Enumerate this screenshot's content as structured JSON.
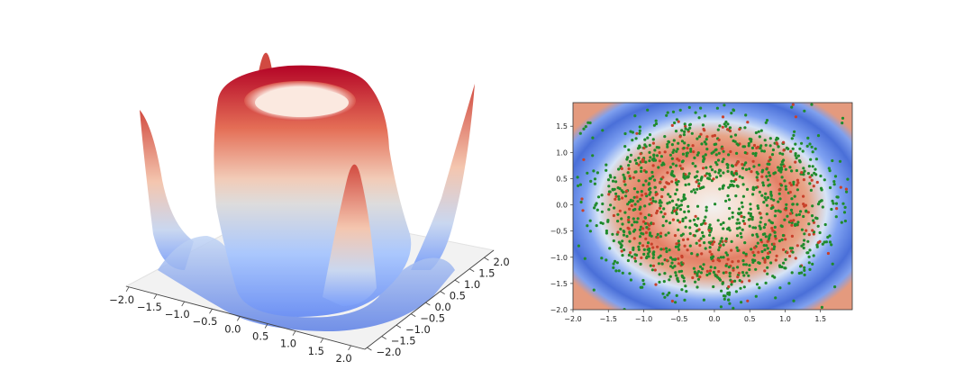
{
  "chart_data": [
    {
      "type": "surface3d",
      "colormap": "coolwarm",
      "x_ticks": [
        "−2.0",
        "−1.5",
        "−1.0",
        "−0.5",
        "0.0",
        "0.5",
        "1.0",
        "1.5",
        "2.0"
      ],
      "y_ticks": [
        "−2.0",
        "−1.5",
        "−1.0",
        "−0.5",
        "0.0",
        "0.5",
        "1.0",
        "1.5",
        "2.0"
      ],
      "xlim": [
        -2,
        2
      ],
      "ylim": [
        -2,
        2
      ],
      "surface": "radial ring peaking near r = 1.1, with tall spikes at the four corners",
      "grid": false
    },
    {
      "type": "heatmap",
      "overlay": "scatter",
      "colormap": "coolwarm background with green and red scatter points",
      "x_ticks": [
        "−2.0",
        "−1.5",
        "−1.0",
        "−0.5",
        "0.0",
        "0.5",
        "1.0",
        "1.5"
      ],
      "y_ticks": [
        "1.5",
        "1.0",
        "0.5",
        "0.0",
        "−0.5",
        "−1.0",
        "−1.5",
        "−2.0"
      ],
      "xlim": [
        -2,
        1.95
      ],
      "ylim": [
        -2,
        1.95
      ],
      "colors": {
        "green_points": "#1f8b2c",
        "red_points": "#c8402a"
      },
      "grid": false
    }
  ]
}
